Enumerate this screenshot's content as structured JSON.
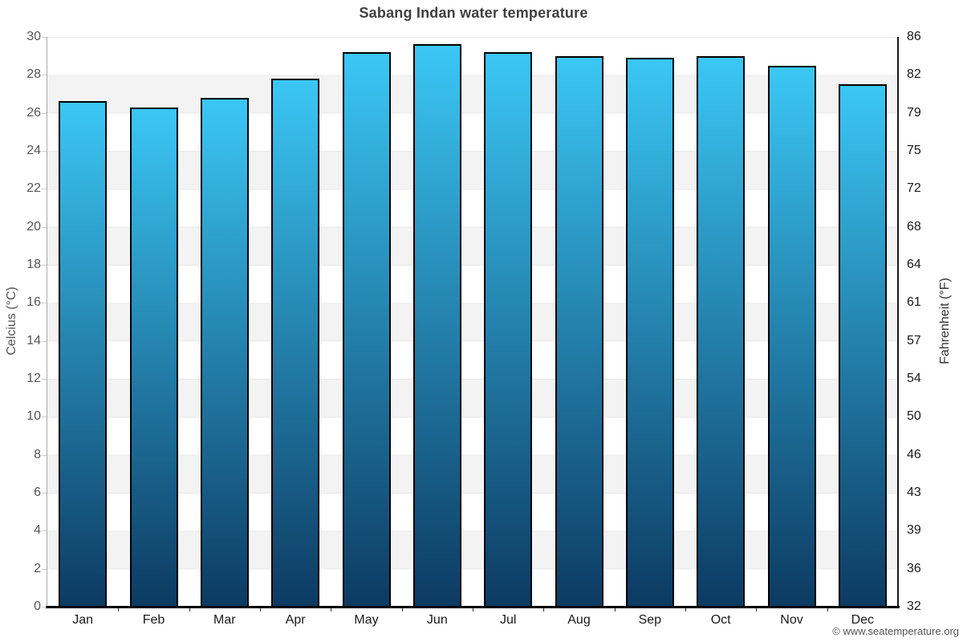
{
  "header": {
    "title": "Sabang Indan water temperature"
  },
  "footer": {
    "text": "© www.seatemperature.org"
  },
  "chart_data": {
    "type": "bar",
    "title": "Sabang Indan water temperature",
    "categories": [
      "Jan",
      "Feb",
      "Mar",
      "Apr",
      "May",
      "Jun",
      "Jul",
      "Aug",
      "Sep",
      "Oct",
      "Nov",
      "Dec"
    ],
    "values_celsius": [
      26.6,
      26.3,
      26.8,
      27.8,
      29.2,
      29.6,
      29.2,
      29.0,
      28.9,
      29.0,
      28.5,
      27.5
    ],
    "ylabel_left": "Celcius (°C)",
    "ylabel_right": "Fahrenheit (°F)",
    "ylim_celsius": [
      0,
      30
    ],
    "yticks_celsius": [
      0,
      2,
      4,
      6,
      8,
      10,
      12,
      14,
      16,
      18,
      20,
      22,
      24,
      26,
      28,
      30
    ],
    "yticks_fahrenheit": [
      32,
      36,
      39,
      43,
      46,
      50,
      54,
      57,
      61,
      64,
      68,
      72,
      75,
      79,
      82,
      86
    ],
    "grid": "horizontal alternating bands, line every 2°C",
    "legend_position": "none",
    "colors": {
      "bar_gradient_top": "#3bc7f5",
      "bar_gradient_bottom": "#0c3a62",
      "bar_border": "#000000",
      "band_fill": "#f3f3f3",
      "gridline": "#e8e8e8",
      "title_text": "#404040"
    }
  }
}
